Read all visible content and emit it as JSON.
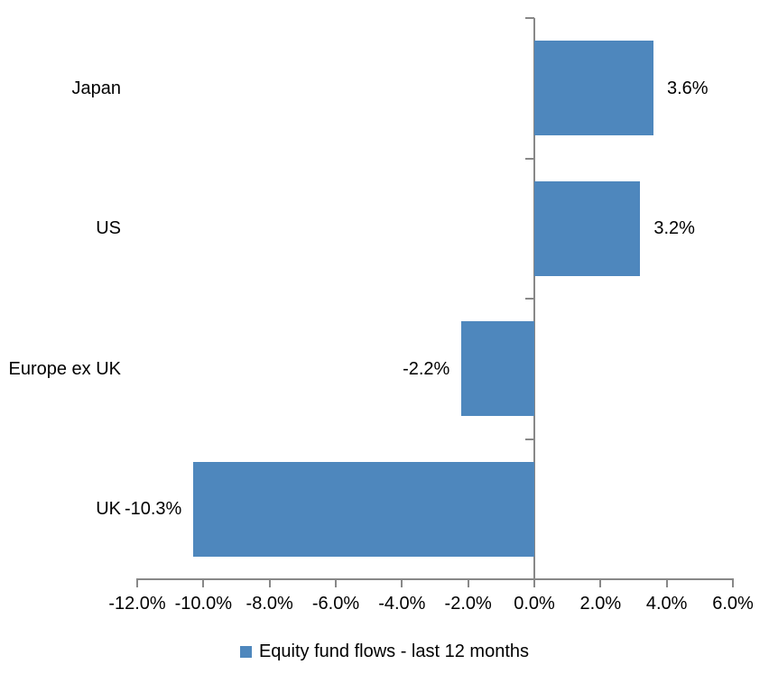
{
  "chart_data": {
    "type": "bar",
    "orientation": "horizontal",
    "title": "",
    "categories": [
      "Japan",
      "US",
      "Europe ex UK",
      "UK"
    ],
    "values": [
      3.6,
      3.2,
      -2.2,
      -10.3
    ],
    "value_labels": [
      "3.6%",
      "3.2%",
      "-2.2%",
      "-10.3%"
    ],
    "series_name": "Equity fund flows - last 12 months",
    "xlim": [
      -12,
      6
    ],
    "x_ticks": [
      -12,
      -10,
      -8,
      -6,
      -4,
      -2,
      0,
      2,
      4,
      6
    ],
    "x_tick_labels": [
      "-12.0%",
      "-10.0%",
      "-8.0%",
      "-6.0%",
      "-4.0%",
      "-2.0%",
      "0.0%",
      "2.0%",
      "4.0%",
      "6.0%"
    ],
    "grid": false,
    "legend_position": "bottom",
    "bar_color": "#4E87BD",
    "axis_color": "#888888",
    "text_color": "#000000"
  },
  "legend": {
    "label": "Equity fund flows - last 12 months",
    "swatch_color": "#4E87BD"
  }
}
